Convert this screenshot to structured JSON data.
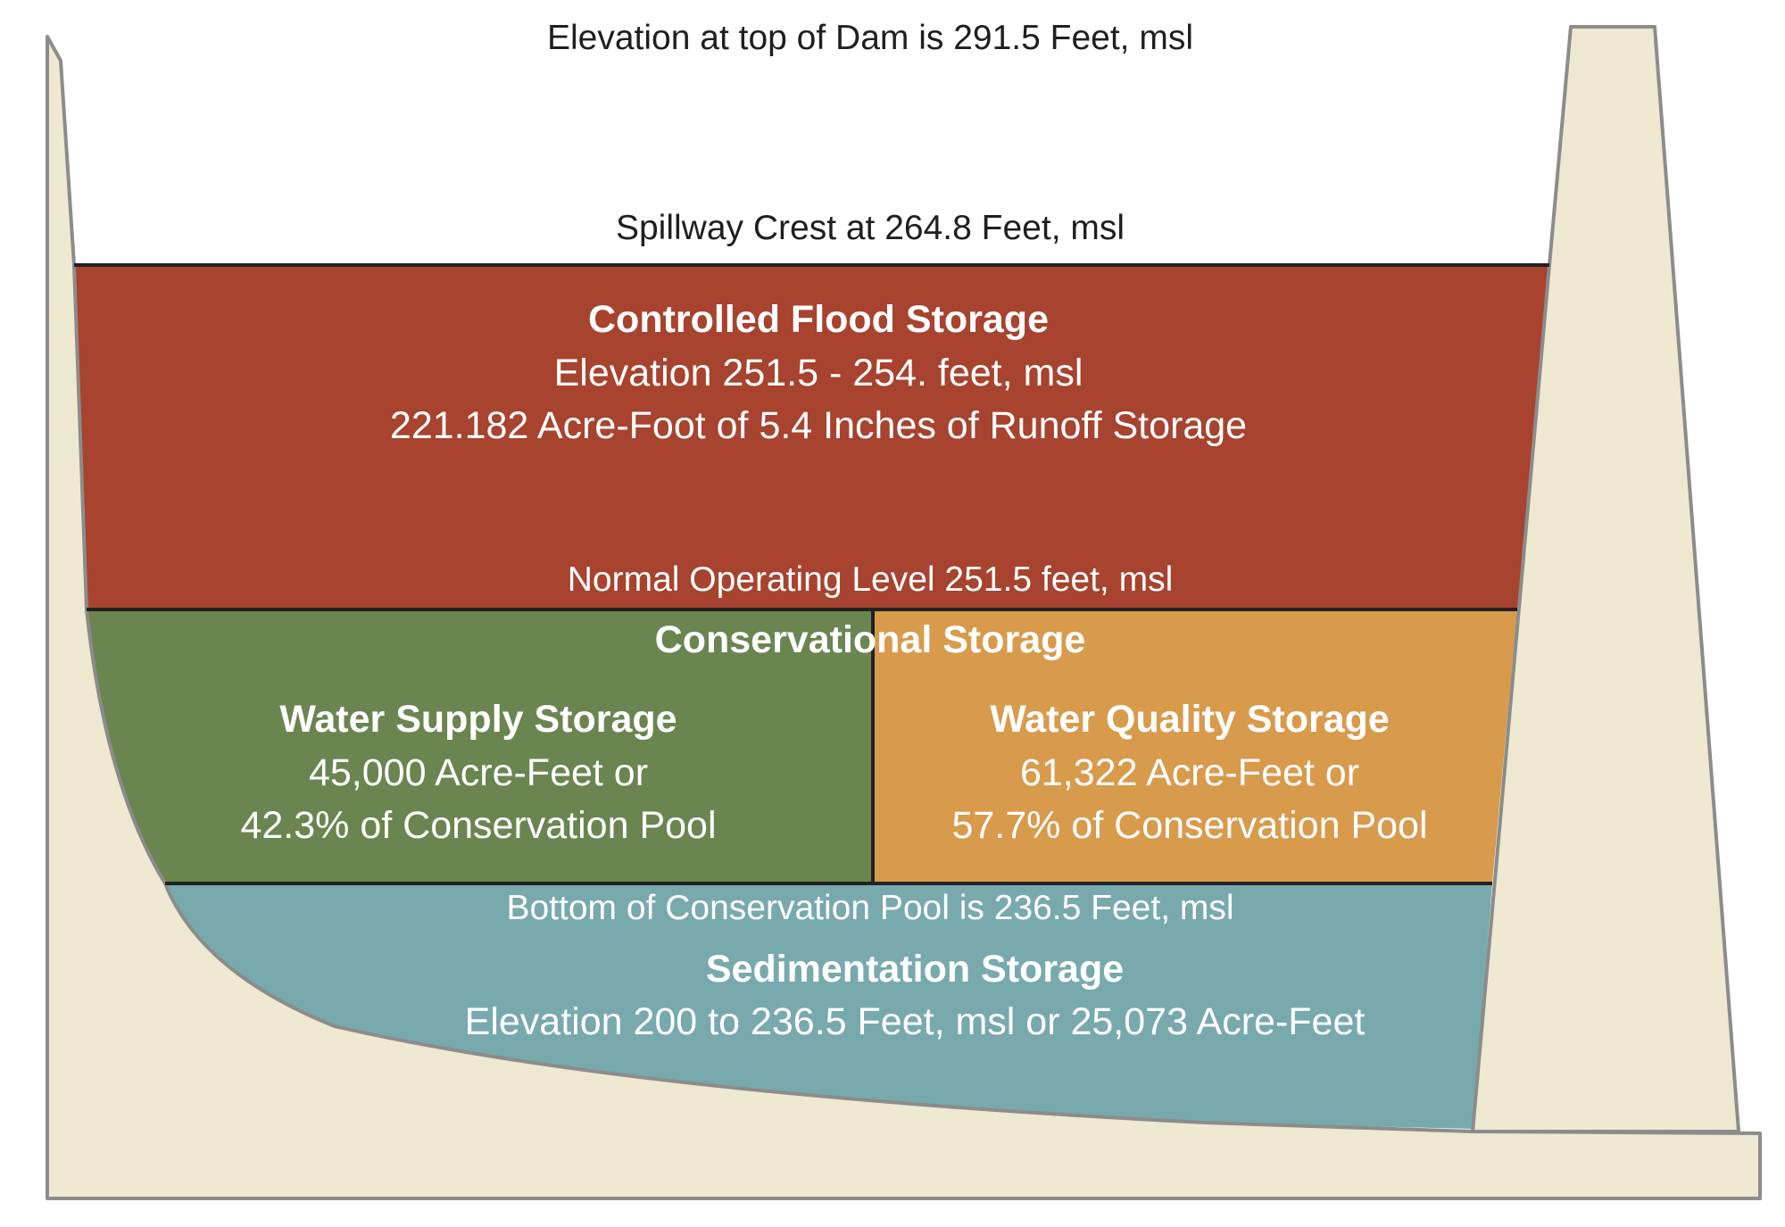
{
  "colors": {
    "earth": "#efe9d2",
    "earth_stroke": "#8c8c8c",
    "flood": "#a7432e",
    "water_supply": "#6a8550",
    "water_quality": "#d89a4b",
    "sedimentation": "#78a9ad",
    "divider": "#222222"
  },
  "labels": {
    "top_of_dam": "Elevation at top of Dam is 291.5 Feet, msl",
    "spillway_crest": "Spillway Crest at 264.8 Feet, msl",
    "normal_operating": "Normal Operating Level 251.5 feet, msl",
    "bottom_conservation": "Bottom of Conservation Pool is 236.5 Feet, msl"
  },
  "zones": {
    "flood": {
      "title": "Controlled Flood Storage",
      "line1": "Elevation 251.5 -  254. feet, msl",
      "line2": "221.182 Acre-Foot of 5.4 Inches of Runoff Storage"
    },
    "conservation": {
      "title": "Conservational Storage"
    },
    "water_supply": {
      "title": "Water Supply Storage",
      "line1": "45,000 Acre-Feet or",
      "line2": "42.3% of Conservation Pool"
    },
    "water_quality": {
      "title": "Water Quality Storage",
      "line1": "61,322 Acre-Feet or",
      "line2": "57.7% of Conservation Pool"
    },
    "sedimentation": {
      "title": "Sedimentation Storage",
      "line1": "Elevation 200 to 236.5 Feet, msl or 25,073 Acre-Feet"
    }
  }
}
